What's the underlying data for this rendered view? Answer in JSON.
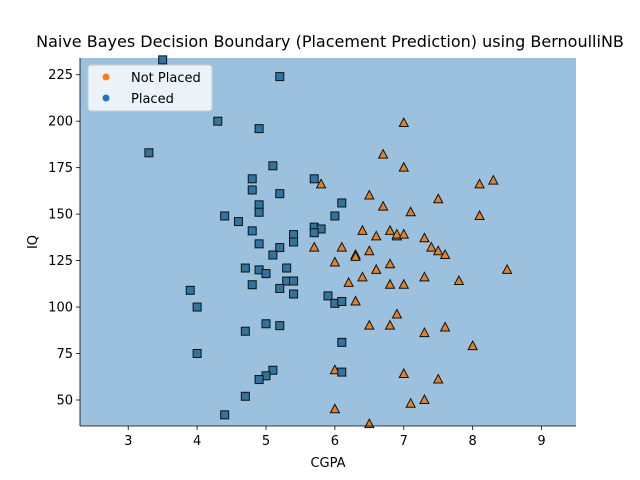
{
  "chart_data": {
    "type": "scatter",
    "title": "Naive Bayes Decision Boundary (Placement Prediction) using BernoulliNB",
    "xlabel": "CGPA",
    "ylabel": "IQ",
    "xlim": [
      2.3,
      9.5
    ],
    "ylim": [
      36,
      234
    ],
    "xticks": [
      3,
      4,
      5,
      6,
      7,
      8,
      9
    ],
    "yticks": [
      50,
      75,
      100,
      125,
      150,
      175,
      200,
      225
    ],
    "grid": false,
    "legend_position": "top-left",
    "background_region_color": "#9bc1de",
    "series": [
      {
        "name": "Not Placed",
        "legend_color": "#ff7f0e",
        "color": "#e1812c",
        "marker": "triangle",
        "points": [
          [
            5.8,
            166
          ],
          [
            6.5,
            160
          ],
          [
            6.7,
            154
          ],
          [
            6.7,
            182
          ],
          [
            7.0,
            199
          ],
          [
            7.0,
            175
          ],
          [
            7.1,
            151
          ],
          [
            7.5,
            158
          ],
          [
            8.1,
            166
          ],
          [
            8.3,
            168
          ],
          [
            8.1,
            149
          ],
          [
            5.7,
            132
          ],
          [
            6.1,
            132
          ],
          [
            6.3,
            128
          ],
          [
            6.3,
            127
          ],
          [
            6.4,
            141
          ],
          [
            6.5,
            130
          ],
          [
            6.6,
            138
          ],
          [
            6.8,
            141
          ],
          [
            6.9,
            138
          ],
          [
            6.9,
            139
          ],
          [
            7.0,
            139
          ],
          [
            7.3,
            137
          ],
          [
            7.4,
            132
          ],
          [
            7.5,
            130
          ],
          [
            7.6,
            128
          ],
          [
            6.0,
            124
          ],
          [
            6.6,
            120
          ],
          [
            6.8,
            123
          ],
          [
            7.3,
            116
          ],
          [
            8.5,
            120
          ],
          [
            6.2,
            113
          ],
          [
            6.4,
            116
          ],
          [
            6.8,
            112
          ],
          [
            7.0,
            112
          ],
          [
            7.8,
            114
          ],
          [
            6.3,
            103
          ],
          [
            6.5,
            90
          ],
          [
            6.8,
            90
          ],
          [
            6.9,
            96
          ],
          [
            7.3,
            86
          ],
          [
            7.6,
            89
          ],
          [
            8.0,
            79
          ],
          [
            6.0,
            66
          ],
          [
            7.0,
            64
          ],
          [
            7.5,
            61
          ],
          [
            7.1,
            48
          ],
          [
            7.3,
            50
          ],
          [
            6.0,
            45
          ],
          [
            6.5,
            37
          ]
        ]
      },
      {
        "name": "Placed",
        "legend_color": "#1f77b4",
        "color": "#3274a1",
        "marker": "square",
        "points": [
          [
            3.5,
            233
          ],
          [
            5.2,
            224
          ],
          [
            4.3,
            200
          ],
          [
            4.9,
            196
          ],
          [
            3.3,
            183
          ],
          [
            5.1,
            176
          ],
          [
            4.8,
            169
          ],
          [
            5.7,
            169
          ],
          [
            4.8,
            163
          ],
          [
            5.2,
            161
          ],
          [
            6.1,
            156
          ],
          [
            4.9,
            155
          ],
          [
            4.9,
            151
          ],
          [
            4.4,
            149
          ],
          [
            6.0,
            149
          ],
          [
            4.6,
            146
          ],
          [
            5.7,
            143
          ],
          [
            5.8,
            142
          ],
          [
            4.8,
            141
          ],
          [
            5.7,
            140
          ],
          [
            5.4,
            139
          ],
          [
            5.4,
            135
          ],
          [
            4.9,
            134
          ],
          [
            5.2,
            132
          ],
          [
            5.1,
            128
          ],
          [
            4.7,
            121
          ],
          [
            4.9,
            120
          ],
          [
            5.3,
            121
          ],
          [
            5.0,
            118
          ],
          [
            5.3,
            114
          ],
          [
            5.4,
            114
          ],
          [
            4.8,
            112
          ],
          [
            5.2,
            110
          ],
          [
            3.9,
            109
          ],
          [
            5.4,
            107
          ],
          [
            5.9,
            106
          ],
          [
            6.0,
            102
          ],
          [
            6.1,
            103
          ],
          [
            4.0,
            100
          ],
          [
            5.0,
            91
          ],
          [
            5.2,
            90
          ],
          [
            4.7,
            87
          ],
          [
            6.1,
            81
          ],
          [
            4.0,
            75
          ],
          [
            5.1,
            66
          ],
          [
            6.1,
            65
          ],
          [
            5.0,
            63
          ],
          [
            4.9,
            61
          ],
          [
            4.7,
            52
          ],
          [
            4.4,
            42
          ]
        ]
      }
    ]
  }
}
